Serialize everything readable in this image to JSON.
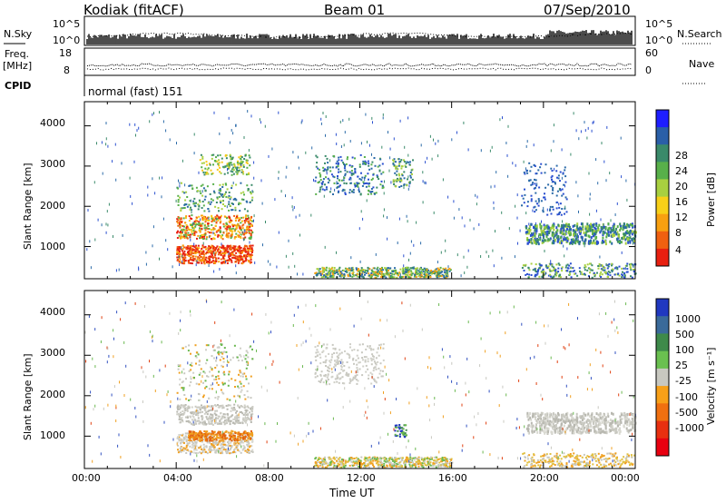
{
  "header": {
    "title": "Kodiak (fitACF)",
    "beam": "Beam 01",
    "date": "07/Sep/2010"
  },
  "aux": {
    "nsky_label": "N.Sky",
    "nsearch_label": "N.Search",
    "nsky_ticks": [
      "10^5",
      "10^0"
    ],
    "nsearch_ticks": [
      "10^5",
      "10^0"
    ],
    "freq_label_1": "Freq.",
    "freq_label_2": "[MHz]",
    "freq_ticks": [
      "18",
      "8"
    ],
    "nave_label": "Nave",
    "nave_ticks": [
      "60",
      "0"
    ],
    "cpid_label": "CPID",
    "cpid_value": "normal (fast) 151"
  },
  "chart_data": [
    {
      "type": "heatmap",
      "name": "power",
      "ylabel": "Slant Range [km]",
      "xlabel": "",
      "y_ticks": [
        1000,
        2000,
        3000,
        4000
      ],
      "ylim": [
        200,
        4600
      ],
      "xlim_hours": [
        0,
        24
      ],
      "colorbar_label": "Power [dB]",
      "colorbar_ticks": [
        "28",
        "24",
        "20",
        "16",
        "12",
        "8",
        "4"
      ],
      "colorbar_colors": [
        "#1e1eff",
        "#2a5fa8",
        "#3a8a6a",
        "#58b04a",
        "#a8d040",
        "#f8d018",
        "#f8a010",
        "#f06010",
        "#e82010"
      ]
    },
    {
      "type": "heatmap",
      "name": "velocity",
      "ylabel": "Slant Range [km]",
      "xlabel": "Time UT",
      "y_ticks": [
        1000,
        2000,
        3000,
        4000
      ],
      "ylim": [
        200,
        4600
      ],
      "xlim_hours": [
        0,
        24
      ],
      "x_tick_labels": [
        "00:00",
        "04:00",
        "08:00",
        "12:00",
        "16:00",
        "20:00",
        "00:00"
      ],
      "colorbar_label": "Velocity [m s⁻¹]",
      "colorbar_ticks": [
        "1000",
        "500",
        "100",
        "25",
        "-25",
        "-100",
        "-500",
        "-1000"
      ],
      "colorbar_colors": [
        "#2038c0",
        "#3a6a9a",
        "#3e8a4a",
        "#6ac050",
        "#c8c8c0",
        "#f8a018",
        "#f07010",
        "#e83010",
        "#e80010"
      ]
    }
  ]
}
